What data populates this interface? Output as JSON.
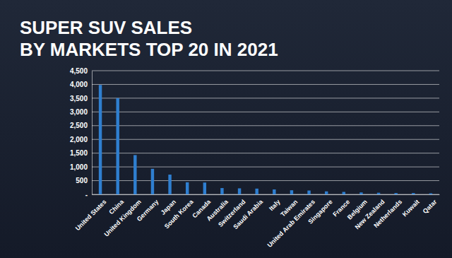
{
  "chart_data": {
    "type": "bar",
    "title": "SUPER SUV SALES\nBY MARKETS TOP 20 IN 2021",
    "categories": [
      "United States",
      "China",
      "United Kingdom",
      "Germany",
      "Japan",
      "South Korea",
      "Canada",
      "Australia",
      "Switzerland",
      "Saudi Arabia",
      "Italy",
      "Taiwan",
      "United Arab Emirates",
      "Singapore",
      "France",
      "Belgium",
      "New Zealand",
      "Netherlands",
      "Kuwait",
      "Qatar"
    ],
    "values": [
      3980,
      3500,
      1430,
      930,
      720,
      440,
      430,
      230,
      220,
      210,
      180,
      150,
      140,
      110,
      90,
      70,
      60,
      50,
      50,
      40
    ],
    "color": "#2f7fd0",
    "ylim": [
      0,
      4500
    ],
    "yticks": [
      {
        "value": 0,
        "label": "-"
      },
      500,
      {
        "value": 1000,
        "label": "1,000"
      },
      {
        "value": 1500,
        "label": "1,500"
      },
      {
        "value": 2000,
        "label": "2,000"
      },
      {
        "value": 2500,
        "label": "2,500"
      },
      {
        "value": 3000,
        "label": "3,000"
      },
      {
        "value": 3500,
        "label": "3,500"
      },
      {
        "value": 4000,
        "label": "4,000"
      },
      {
        "value": 4500,
        "label": "4,500"
      }
    ],
    "grid": true
  }
}
